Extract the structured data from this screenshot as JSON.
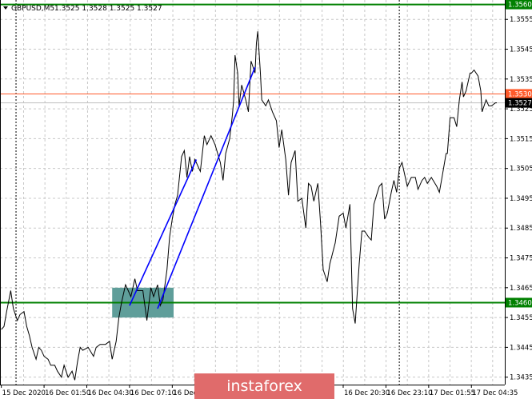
{
  "header": {
    "symbol_label": "GBPUSD,M5",
    "ohlc": "1.3525 1.3528 1.3525 1.3527"
  },
  "watermark": "instaforex",
  "chart_data": {
    "type": "line",
    "title": "GBPUSD,M5",
    "x_unit": "bar",
    "xlim": [
      0,
      378
    ],
    "ylim": [
      1.34325,
      1.35615
    ],
    "grid": true,
    "y_ticks": [
      "1.3555",
      "1.3545",
      "1.3535",
      "1.3525",
      "1.3515",
      "1.3505",
      "1.3495",
      "1.3485",
      "1.3475",
      "1.3465",
      "1.3455",
      "1.3445",
      "1.3435"
    ],
    "x_ticks": [
      {
        "bar": 1,
        "label": "15 Dec 2020"
      },
      {
        "bar": 33,
        "label": "16 Dec 01:50"
      },
      {
        "bar": 65,
        "label": "16 Dec 04:30"
      },
      {
        "bar": 97,
        "label": "16 Dec 07:10"
      },
      {
        "bar": 129,
        "label": "16 Dec 0"
      },
      {
        "bar": 257,
        "label": "16 Dec 20:30"
      },
      {
        "bar": 289,
        "label": "16 Dec 23:10"
      },
      {
        "bar": 321,
        "label": "17 Dec 01:55"
      },
      {
        "bar": 353,
        "label": "17 Dec 04:35"
      }
    ],
    "series": [
      {
        "color": "#000000",
        "points": [
          [
            1,
            1.3451
          ],
          [
            3,
            1.3452
          ],
          [
            5,
            1.3457
          ],
          [
            8,
            1.3464
          ],
          [
            10,
            1.3458
          ],
          [
            13,
            1.3454
          ],
          [
            15,
            1.3456
          ],
          [
            18,
            1.3457
          ],
          [
            20,
            1.3452
          ],
          [
            22,
            1.3449
          ],
          [
            24,
            1.3445
          ],
          [
            27,
            1.3441
          ],
          [
            29,
            1.3445
          ],
          [
            31,
            1.3444
          ],
          [
            33,
            1.3442
          ],
          [
            36,
            1.3441
          ],
          [
            38,
            1.3439
          ],
          [
            41,
            1.3439
          ],
          [
            43,
            1.3437
          ],
          [
            46,
            1.3435
          ],
          [
            48,
            1.3439
          ],
          [
            51,
            1.3435
          ],
          [
            54,
            1.3437
          ],
          [
            56,
            1.3434
          ],
          [
            58,
            1.344
          ],
          [
            60,
            1.3445
          ],
          [
            62,
            1.3444
          ],
          [
            66,
            1.3445
          ],
          [
            70,
            1.3442
          ],
          [
            72,
            1.3445
          ],
          [
            75,
            1.3446
          ],
          [
            79,
            1.3446
          ],
          [
            82,
            1.3447
          ],
          [
            84,
            1.3441
          ],
          [
            87,
            1.3447
          ],
          [
            89,
            1.3455
          ],
          [
            91,
            1.346
          ],
          [
            94,
            1.3466
          ],
          [
            96,
            1.3464
          ],
          [
            98,
            1.3462
          ],
          [
            101,
            1.3468
          ],
          [
            103,
            1.3464
          ],
          [
            107,
            1.3464
          ],
          [
            110,
            1.3454
          ],
          [
            113,
            1.3465
          ],
          [
            115,
            1.3462
          ],
          [
            118,
            1.3466
          ],
          [
            120,
            1.3459
          ],
          [
            122,
            1.3461
          ],
          [
            125,
            1.3471
          ],
          [
            127,
            1.3482
          ],
          [
            129,
            1.3488
          ],
          [
            131,
            1.3493
          ],
          [
            133,
            1.3496
          ],
          [
            136,
            1.3509
          ],
          [
            138,
            1.3511
          ],
          [
            140,
            1.3502
          ],
          [
            142,
            1.3509
          ],
          [
            144,
            1.3504
          ],
          [
            146,
            1.3508
          ],
          [
            150,
            1.3504
          ],
          [
            153,
            1.3516
          ],
          [
            155,
            1.3513
          ],
          [
            158,
            1.3516
          ],
          [
            161,
            1.3513
          ],
          [
            163,
            1.351
          ],
          [
            165,
            1.3507
          ],
          [
            167,
            1.3501
          ],
          [
            169,
            1.351
          ],
          [
            172,
            1.3515
          ],
          [
            174,
            1.3523
          ],
          [
            175,
            1.3528
          ],
          [
            176,
            1.3543
          ],
          [
            178,
            1.3537
          ],
          [
            179,
            1.3526
          ],
          [
            181,
            1.3533
          ],
          [
            184,
            1.3528
          ],
          [
            186,
            1.3524
          ],
          [
            188,
            1.3541
          ],
          [
            191,
            1.3537
          ],
          [
            192,
            1.3547
          ],
          [
            193,
            1.3551
          ],
          [
            195,
            1.3537
          ],
          [
            196,
            1.3528
          ],
          [
            199,
            1.3526
          ],
          [
            201,
            1.3528
          ],
          [
            204,
            1.3524
          ],
          [
            207,
            1.3521
          ],
          [
            209,
            1.3512
          ],
          [
            211,
            1.3518
          ],
          [
            214,
            1.3508
          ],
          [
            216,
            1.3496
          ],
          [
            218,
            1.3507
          ],
          [
            221,
            1.3511
          ],
          [
            223,
            1.3494
          ],
          [
            226,
            1.3495
          ],
          [
            229,
            1.3485
          ],
          [
            231,
            1.35
          ],
          [
            233,
            1.3499
          ],
          [
            235,
            1.3494
          ],
          [
            238,
            1.35
          ],
          [
            240,
            1.3487
          ],
          [
            242,
            1.3471
          ],
          [
            245,
            1.3467
          ],
          [
            247,
            1.3473
          ],
          [
            251,
            1.348
          ],
          [
            254,
            1.3489
          ],
          [
            257,
            1.349
          ],
          [
            259,
            1.3485
          ],
          [
            262,
            1.3493
          ],
          [
            264,
            1.3458
          ],
          [
            266,
            1.3453
          ],
          [
            269,
            1.3473
          ],
          [
            271,
            1.3484
          ],
          [
            273,
            1.3484
          ],
          [
            276,
            1.3482
          ],
          [
            278,
            1.3481
          ],
          [
            280,
            1.3493
          ],
          [
            282,
            1.3496
          ],
          [
            284,
            1.3499
          ],
          [
            286,
            1.35
          ],
          [
            288,
            1.3488
          ],
          [
            290,
            1.349
          ],
          [
            293,
            1.3497
          ],
          [
            295,
            1.3501
          ],
          [
            297,
            1.3497
          ],
          [
            299,
            1.3505
          ],
          [
            301,
            1.3507
          ],
          [
            303,
            1.3503
          ],
          [
            305,
            1.3499
          ],
          [
            308,
            1.3502
          ],
          [
            311,
            1.3502
          ],
          [
            313,
            1.3498
          ],
          [
            316,
            1.3501
          ],
          [
            318,
            1.3502
          ],
          [
            320,
            1.35
          ],
          [
            323,
            1.3502
          ],
          [
            327,
            1.3499
          ],
          [
            329,
            1.3497
          ],
          [
            331,
            1.3502
          ],
          [
            334,
            1.351
          ],
          [
            335,
            1.351
          ],
          [
            337,
            1.3522
          ],
          [
            340,
            1.3522
          ],
          [
            342,
            1.3519
          ],
          [
            344,
            1.3528
          ],
          [
            346,
            1.3534
          ],
          [
            347,
            1.3529
          ],
          [
            349,
            1.3531
          ],
          [
            352,
            1.3537
          ],
          [
            353,
            1.3537
          ],
          [
            355,
            1.3538
          ],
          [
            358,
            1.3536
          ],
          [
            360,
            1.3531
          ],
          [
            361,
            1.3524
          ],
          [
            364,
            1.3528
          ],
          [
            366,
            1.3526
          ],
          [
            368,
            1.3526
          ],
          [
            371,
            1.3527
          ],
          [
            372,
            1.3527
          ]
        ]
      }
    ],
    "levels": [
      {
        "price": 1.356,
        "label": "1.3560",
        "color": "#008000",
        "label_bg": "#008000",
        "label_fg": "#ffffff"
      },
      {
        "price": 1.353,
        "label": "1.3530",
        "color": "#ff5a2a",
        "label_bg": "#ff5a2a",
        "label_fg": "#ffffff"
      },
      {
        "price": 1.3527,
        "label": "1.3527",
        "color": "#c0c0c0",
        "label_bg": "#000000",
        "label_fg": "#ffffff"
      },
      {
        "price": 1.346,
        "label": "1.3460",
        "color": "#008000",
        "label_bg": "#008000",
        "label_fg": "#ffffff"
      }
    ],
    "zone": {
      "bar_from": 84,
      "bar_to": 130,
      "price_high": 1.3465,
      "price_low": 1.3455,
      "color": "#5f9e9a"
    },
    "trendlines": [
      {
        "from": [
          97,
          1.3459
        ],
        "to": [
          147,
          1.3508
        ],
        "color": "#0000ff"
      },
      {
        "from": [
          118,
          1.3458
        ],
        "to": [
          191,
          1.3539
        ],
        "color": "#0000ff"
      }
    ],
    "period_separators": [
      12,
      299
    ]
  }
}
